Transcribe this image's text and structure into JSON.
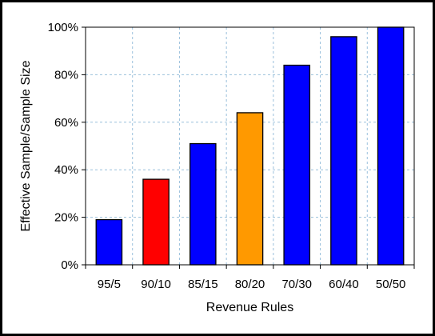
{
  "chart_data": {
    "type": "bar",
    "xlabel": "Revenue Rules",
    "ylabel": "Effective Sample/Sample Size",
    "ylim": [
      0,
      100
    ],
    "y_ticks": [
      "0%",
      "20%",
      "40%",
      "60%",
      "80%",
      "100%"
    ],
    "y_tick_values": [
      0,
      20,
      40,
      60,
      80,
      100
    ],
    "categories": [
      "95/5",
      "90/10",
      "85/15",
      "80/20",
      "70/30",
      "60/40",
      "50/50"
    ],
    "values": [
      19,
      36,
      51,
      64,
      84,
      96,
      100
    ],
    "bar_colors": [
      "#0000ff",
      "#ff0000",
      "#0000ff",
      "#ff9900",
      "#0000ff",
      "#0000ff",
      "#0000ff"
    ],
    "grid": true,
    "grid_color": "#9ac0dc",
    "background": "#ffffff",
    "frame_color": "#000000"
  }
}
